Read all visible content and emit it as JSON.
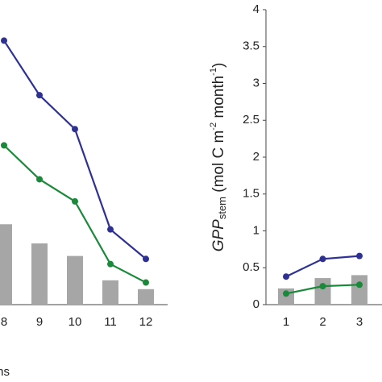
{
  "chart_data": [
    {
      "type": "bar_line",
      "categories": [
        "8",
        "9",
        "10",
        "11",
        "12"
      ],
      "xlabel": "Months",
      "ylim": [
        0,
        4
      ],
      "bars": {
        "color": "#a6a6a6",
        "values": [
          1.09,
          0.83,
          0.66,
          0.33,
          0.21
        ]
      },
      "series": [
        {
          "color": "#2e3192",
          "values": [
            3.58,
            2.84,
            2.38,
            1.02,
            0.62
          ]
        },
        {
          "color": "#1a8a3a",
          "values": [
            2.16,
            1.7,
            1.4,
            0.55,
            0.3
          ]
        }
      ]
    },
    {
      "type": "bar_line",
      "categories": [
        "1",
        "2",
        "3"
      ],
      "ylabel": {
        "main": "GPP",
        "sub": "stem",
        "unit": " (mol C m",
        "exp1": "-2",
        "unit2": " month",
        "exp2": "-1",
        "close": ")"
      },
      "ylim": [
        0,
        4
      ],
      "yticks": [
        0,
        0.5,
        1,
        1.5,
        2,
        2.5,
        3,
        3.5,
        4
      ],
      "bars": {
        "color": "#a6a6a6",
        "values": [
          0.22,
          0.36,
          0.4
        ]
      },
      "series": [
        {
          "color": "#2e3192",
          "values": [
            0.38,
            0.62,
            0.66
          ]
        },
        {
          "color": "#1a8a3a",
          "values": [
            0.15,
            0.25,
            0.27
          ]
        }
      ]
    }
  ]
}
